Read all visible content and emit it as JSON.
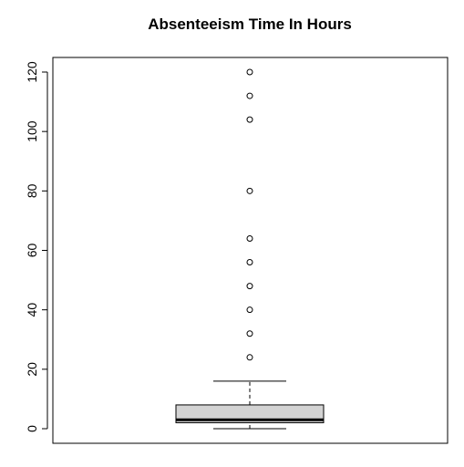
{
  "chart_data": {
    "type": "boxplot",
    "title": "Absenteeism Time In Hours",
    "xlabel": "",
    "ylabel": "",
    "ylim": [
      -5,
      125
    ],
    "yticks": [
      0,
      20,
      40,
      60,
      80,
      100,
      120
    ],
    "ytick_labels": [
      "0",
      "20",
      "40",
      "60",
      "80",
      "100",
      "120"
    ],
    "grid": false,
    "box": {
      "min": 0,
      "q1": 2,
      "median": 3,
      "q3": 8,
      "upper_whisker": 16,
      "outliers": [
        24,
        32,
        40,
        48,
        56,
        64,
        80,
        104,
        112,
        120
      ]
    },
    "colors": {
      "box_fill": "#d3d3d3",
      "stroke": "#000000",
      "background": "#ffffff"
    }
  }
}
